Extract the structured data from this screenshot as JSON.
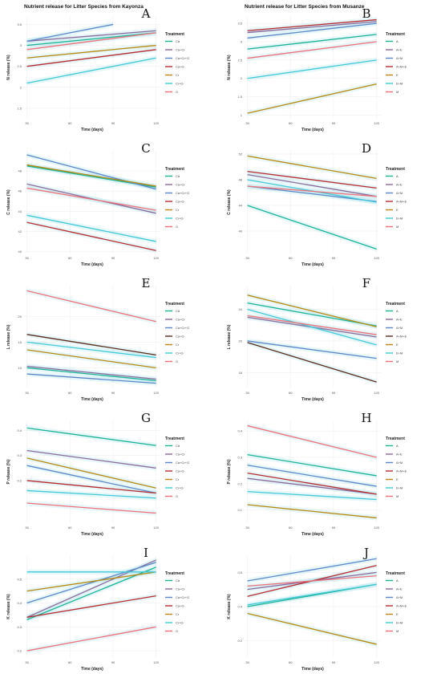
{
  "chart_data": [
    {
      "id": "A",
      "type": "line",
      "letter": "A",
      "title": "Nutrient release for Litter Species from Kayonza",
      "xlabel": "Time (days)",
      "ylabel": "N release (%)",
      "xticks": [
        30,
        60,
        90,
        120
      ],
      "yticks": [
        1.5,
        2.0,
        2.5,
        3.0,
        3.5
      ],
      "xlim": [
        28,
        123
      ],
      "ylim": [
        1.25,
        3.7
      ],
      "legend_title": "Treatment",
      "series": [
        {
          "name": "Ca",
          "color": "#19b394",
          "x": [
            30,
            120
          ],
          "y": [
            3.0,
            3.3
          ]
        },
        {
          "name": "Ca+Cr",
          "color": "#8b6a9c",
          "x": [
            30,
            120
          ],
          "y": [
            3.1,
            3.35
          ]
        },
        {
          "name": "Ca+Cr+G",
          "color": "#5b87c9",
          "x": [
            30,
            90
          ],
          "y": [
            3.1,
            3.5
          ]
        },
        {
          "name": "Ca+G",
          "color": "#b8292e",
          "x": [
            30,
            120
          ],
          "y": [
            2.5,
            2.9
          ]
        },
        {
          "name": "Cr",
          "color": "#b8870f",
          "x": [
            30,
            120
          ],
          "y": [
            2.7,
            3.0
          ]
        },
        {
          "name": "Cr+G",
          "color": "#3fc9d9",
          "x": [
            30,
            120
          ],
          "y": [
            2.1,
            2.7
          ]
        },
        {
          "name": "G",
          "color": "#f0707a",
          "x": [
            30,
            120
          ],
          "y": [
            2.9,
            3.3
          ]
        }
      ]
    },
    {
      "id": "B",
      "type": "line",
      "letter": "B",
      "title": "Nutrient release for Litter Species from Musanze",
      "xlabel": "Time (days)",
      "ylabel": "N release (%)",
      "xticks": [
        30,
        60,
        90,
        120
      ],
      "yticks": [
        1.0,
        1.5,
        2.0,
        2.5,
        3.0,
        3.5
      ],
      "xlim": [
        28,
        123
      ],
      "ylim": [
        0.9,
        3.7
      ],
      "legend_title": "Treatment",
      "series": [
        {
          "name": "A",
          "color": "#19b394",
          "x": [
            30,
            120
          ],
          "y": [
            2.8,
            3.2
          ]
        },
        {
          "name": "A+E",
          "color": "#8b6a9c",
          "x": [
            30,
            120
          ],
          "y": [
            3.25,
            3.55
          ]
        },
        {
          "name": "A+M",
          "color": "#5b87c9",
          "x": [
            30,
            120
          ],
          "y": [
            3.1,
            3.5
          ]
        },
        {
          "name": "A+M+E",
          "color": "#b8292e",
          "x": [
            30,
            120
          ],
          "y": [
            3.3,
            3.6
          ]
        },
        {
          "name": "E",
          "color": "#b8870f",
          "x": [
            30,
            120
          ],
          "y": [
            1.05,
            1.85
          ]
        },
        {
          "name": "E+M",
          "color": "#3fc9d9",
          "x": [
            30,
            120
          ],
          "y": [
            2.0,
            2.5
          ]
        },
        {
          "name": "M",
          "color": "#f0707a",
          "x": [
            30,
            120
          ],
          "y": [
            2.55,
            3.0
          ]
        }
      ]
    },
    {
      "id": "C",
      "type": "line",
      "letter": "C",
      "title": "",
      "xlabel": "Time (days)",
      "ylabel": "C release (%)",
      "xticks": [
        30,
        60,
        90,
        120
      ],
      "yticks": [
        40,
        42,
        44,
        46,
        48
      ],
      "xlim": [
        28,
        123
      ],
      "ylim": [
        39.8,
        50.0
      ],
      "legend_title": "Treatment",
      "series": [
        {
          "name": "Ca",
          "color": "#19b394",
          "x": [
            30,
            120
          ],
          "y": [
            48.5,
            46.4
          ]
        },
        {
          "name": "Ca+Cr",
          "color": "#8b6a9c",
          "x": [
            30,
            120
          ],
          "y": [
            46.7,
            43.8
          ]
        },
        {
          "name": "Ca+Cr+G",
          "color": "#5b87c9",
          "x": [
            30,
            120
          ],
          "y": [
            49.6,
            46.2
          ]
        },
        {
          "name": "Ca+G",
          "color": "#b8292e",
          "x": [
            30,
            120
          ],
          "y": [
            42.9,
            40.1
          ]
        },
        {
          "name": "Cr",
          "color": "#b8870f",
          "x": [
            30,
            120
          ],
          "y": [
            48.6,
            46.5
          ]
        },
        {
          "name": "Cr+G",
          "color": "#3fc9d9",
          "x": [
            30,
            120
          ],
          "y": [
            43.6,
            41.0
          ]
        },
        {
          "name": "G",
          "color": "#f0707a",
          "x": [
            30,
            120
          ],
          "y": [
            46.3,
            44.1
          ]
        }
      ]
    },
    {
      "id": "D",
      "type": "line",
      "letter": "D",
      "title": "",
      "xlabel": "Time (days)",
      "ylabel": "C release (%)",
      "xticks": [
        30,
        60,
        90,
        120
      ],
      "yticks": [
        40,
        44,
        48,
        52
      ],
      "xlim": [
        28,
        123
      ],
      "ylim": [
        36.5,
        52.5
      ],
      "legend_title": "Treatment",
      "series": [
        {
          "name": "A",
          "color": "#19b394",
          "x": [
            30,
            120
          ],
          "y": [
            44.0,
            37.2
          ]
        },
        {
          "name": "A+E",
          "color": "#8b6a9c",
          "x": [
            30,
            120
          ],
          "y": [
            48.8,
            45.4
          ]
        },
        {
          "name": "A+M",
          "color": "#5b87c9",
          "x": [
            30,
            120
          ],
          "y": [
            47.0,
            44.6
          ]
        },
        {
          "name": "A+M+E",
          "color": "#b8292e",
          "x": [
            30,
            120
          ],
          "y": [
            49.3,
            46.7
          ]
        },
        {
          "name": "E",
          "color": "#b8870f",
          "x": [
            30,
            120
          ],
          "y": [
            51.7,
            48.2
          ]
        },
        {
          "name": "E+M",
          "color": "#3fc9d9",
          "x": [
            30,
            120
          ],
          "y": [
            48.0,
            44.5
          ]
        },
        {
          "name": "M",
          "color": "#f0707a",
          "x": [
            30,
            120
          ],
          "y": [
            47.0,
            45.4
          ]
        }
      ]
    },
    {
      "id": "E",
      "type": "line",
      "letter": "E",
      "title": "",
      "xlabel": "Time (days)",
      "ylabel": "L release (%)",
      "xticks": [
        30,
        60,
        90,
        120
      ],
      "yticks": [
        10,
        15,
        20
      ],
      "xlim": [
        28,
        123
      ],
      "ylim": [
        6.0,
        26.0
      ],
      "legend_title": "Treatment",
      "series": [
        {
          "name": "Ca",
          "color": "#19b394",
          "x": [
            30,
            120
          ],
          "y": [
            10.0,
            7.5
          ]
        },
        {
          "name": "Ca+Cr",
          "color": "#8b6a9c",
          "x": [
            30,
            120
          ],
          "y": [
            10.3,
            7.8
          ]
        },
        {
          "name": "Ca+Cr+G",
          "color": "#5b87c9",
          "x": [
            30,
            120
          ],
          "y": [
            8.8,
            7.0
          ]
        },
        {
          "name": "Ca+G",
          "color": "#5a2a1a",
          "x": [
            30,
            120
          ],
          "y": [
            16.5,
            12.5
          ]
        },
        {
          "name": "Cr",
          "color": "#b8870f",
          "x": [
            30,
            120
          ],
          "y": [
            13.5,
            10.0
          ]
        },
        {
          "name": "Cr+G",
          "color": "#3fc9d9",
          "x": [
            30,
            120
          ],
          "y": [
            15.0,
            12.0
          ]
        },
        {
          "name": "G",
          "color": "#f0707a",
          "x": [
            30,
            120
          ],
          "y": [
            25.0,
            19.0
          ]
        }
      ]
    },
    {
      "id": "F",
      "type": "line",
      "letter": "F",
      "title": "",
      "xlabel": "Time (days)",
      "ylabel": "L release (%)",
      "xticks": [
        30,
        60,
        90,
        120
      ],
      "yticks": [
        16,
        20,
        24
      ],
      "xlim": [
        28,
        123
      ],
      "ylim": [
        14.0,
        27.0
      ],
      "legend_title": "Treatment",
      "series": [
        {
          "name": "A",
          "color": "#19b394",
          "x": [
            30,
            120
          ],
          "y": [
            24.8,
            21.9
          ]
        },
        {
          "name": "A+E",
          "color": "#8b6a9c",
          "x": [
            30,
            120
          ],
          "y": [
            23.0,
            20.5
          ]
        },
        {
          "name": "A+M",
          "color": "#5b87c9",
          "x": [
            30,
            120
          ],
          "y": [
            20.0,
            17.8
          ]
        },
        {
          "name": "A+M+E",
          "color": "#5a2a1a",
          "x": [
            30,
            120
          ],
          "y": [
            19.8,
            14.8
          ]
        },
        {
          "name": "E",
          "color": "#b8870f",
          "x": [
            30,
            120
          ],
          "y": [
            25.8,
            21.8
          ]
        },
        {
          "name": "E+M",
          "color": "#3fc9d9",
          "x": [
            30,
            120
          ],
          "y": [
            24.0,
            19.5
          ]
        },
        {
          "name": "M",
          "color": "#f0707a",
          "x": [
            30,
            120
          ],
          "y": [
            23.2,
            20.8
          ]
        }
      ]
    },
    {
      "id": "G",
      "type": "line",
      "letter": "G",
      "title": "",
      "xlabel": "Time (days)",
      "ylabel": "P release (%)",
      "xticks": [
        30,
        60,
        90,
        120
      ],
      "yticks": [
        0.2,
        0.3,
        0.4
      ],
      "xlim": [
        28,
        123
      ],
      "ylim": [
        0.03,
        0.44
      ],
      "legend_title": "Treatment",
      "series": [
        {
          "name": "Ca",
          "color": "#19b394",
          "x": [
            30,
            120
          ],
          "y": [
            0.41,
            0.34
          ]
        },
        {
          "name": "Ca+Cr",
          "color": "#8b6a9c",
          "x": [
            30,
            120
          ],
          "y": [
            0.32,
            0.25
          ]
        },
        {
          "name": "Ca+Cr+G",
          "color": "#5b87c9",
          "x": [
            30,
            120
          ],
          "y": [
            0.26,
            0.15
          ]
        },
        {
          "name": "Ca+G",
          "color": "#b8292e",
          "x": [
            30,
            120
          ],
          "y": [
            0.2,
            0.15
          ]
        },
        {
          "name": "Cr",
          "color": "#b8870f",
          "x": [
            30,
            120
          ],
          "y": [
            0.29,
            0.17
          ]
        },
        {
          "name": "Cr+G",
          "color": "#3fc9d9",
          "x": [
            30,
            120
          ],
          "y": [
            0.16,
            0.13
          ]
        },
        {
          "name": "G",
          "color": "#f0707a",
          "x": [
            30,
            120
          ],
          "y": [
            0.11,
            0.07
          ]
        }
      ]
    },
    {
      "id": "H",
      "type": "line",
      "letter": "H",
      "title": "",
      "xlabel": "Time (days)",
      "ylabel": "P release (%)",
      "xticks": [
        30,
        60,
        90,
        120
      ],
      "yticks": [
        0.1,
        0.2,
        0.3,
        0.4
      ],
      "xlim": [
        28,
        123
      ],
      "ylim": [
        0.05,
        0.44
      ],
      "legend_title": "Treatment",
      "series": [
        {
          "name": "A",
          "color": "#19b394",
          "x": [
            30,
            120
          ],
          "y": [
            0.31,
            0.23
          ]
        },
        {
          "name": "A+E",
          "color": "#8b6a9c",
          "x": [
            30,
            120
          ],
          "y": [
            0.22,
            0.16
          ]
        },
        {
          "name": "A+M",
          "color": "#5b87c9",
          "x": [
            30,
            120
          ],
          "y": [
            0.27,
            0.19
          ]
        },
        {
          "name": "A+M+E",
          "color": "#b8292e",
          "x": [
            30,
            120
          ],
          "y": [
            0.24,
            0.16
          ]
        },
        {
          "name": "E",
          "color": "#b8870f",
          "x": [
            30,
            120
          ],
          "y": [
            0.12,
            0.07
          ]
        },
        {
          "name": "E+M",
          "color": "#3fc9d9",
          "x": [
            30,
            120
          ],
          "y": [
            0.17,
            0.14
          ]
        },
        {
          "name": "M",
          "color": "#f0707a",
          "x": [
            30,
            120
          ],
          "y": [
            0.42,
            0.3
          ]
        }
      ]
    },
    {
      "id": "I",
      "type": "line",
      "letter": "I",
      "title": "",
      "xlabel": "Time (days)",
      "ylabel": "K release (%)",
      "xticks": [
        30,
        60,
        90,
        120
      ],
      "yticks": [
        0.2,
        0.3,
        0.4,
        0.5
      ],
      "xlim": [
        28,
        123
      ],
      "ylim": [
        0.17,
        0.6
      ],
      "legend_title": "Treatment",
      "series": [
        {
          "name": "Ca",
          "color": "#19b394",
          "x": [
            30,
            120
          ],
          "y": [
            0.33,
            0.55
          ]
        },
        {
          "name": "Ca+Cr",
          "color": "#8b6a9c",
          "x": [
            30,
            120
          ],
          "y": [
            0.34,
            0.58
          ]
        },
        {
          "name": "Ca+Cr+G",
          "color": "#5b87c9",
          "x": [
            30,
            120
          ],
          "y": [
            0.4,
            0.57
          ]
        },
        {
          "name": "Ca+G",
          "color": "#b8292e",
          "x": [
            30,
            120
          ],
          "y": [
            0.34,
            0.43
          ]
        },
        {
          "name": "Cr",
          "color": "#b8870f",
          "x": [
            30,
            120
          ],
          "y": [
            0.45,
            0.53
          ]
        },
        {
          "name": "Cr+G",
          "color": "#3fc9d9",
          "x": [
            30,
            120
          ],
          "y": [
            0.53,
            0.53
          ]
        },
        {
          "name": "G",
          "color": "#f0707a",
          "x": [
            30,
            120
          ],
          "y": [
            0.2,
            0.3
          ]
        }
      ]
    },
    {
      "id": "J",
      "type": "line",
      "letter": "J",
      "title": "",
      "xlabel": "Time (days)",
      "ylabel": "K release (%)",
      "xticks": [
        30,
        60,
        90,
        120
      ],
      "yticks": [
        0.2,
        0.4,
        0.6
      ],
      "xlim": [
        28,
        123
      ],
      "ylim": [
        0.1,
        0.7
      ],
      "legend_title": "Treatment",
      "series": [
        {
          "name": "A",
          "color": "#19b394",
          "x": [
            30,
            120
          ],
          "y": [
            0.4,
            0.53
          ]
        },
        {
          "name": "A+E",
          "color": "#8b6a9c",
          "x": [
            30,
            120
          ],
          "y": [
            0.5,
            0.6
          ]
        },
        {
          "name": "A+M",
          "color": "#5b87c9",
          "x": [
            30,
            120
          ],
          "y": [
            0.55,
            0.68
          ]
        },
        {
          "name": "A+M+E",
          "color": "#b8292e",
          "x": [
            30,
            120
          ],
          "y": [
            0.46,
            0.64
          ]
        },
        {
          "name": "E",
          "color": "#b8870f",
          "x": [
            30,
            120
          ],
          "y": [
            0.36,
            0.18
          ]
        },
        {
          "name": "E+M",
          "color": "#3fc9d9",
          "x": [
            30,
            120
          ],
          "y": [
            0.41,
            0.53
          ]
        },
        {
          "name": "M",
          "color": "#f0707a",
          "x": [
            30,
            120
          ],
          "y": [
            0.52,
            0.58
          ]
        }
      ]
    }
  ]
}
